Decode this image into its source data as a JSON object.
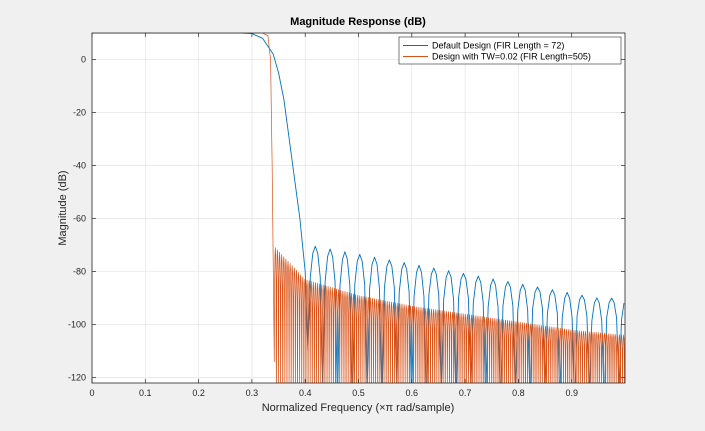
{
  "chart_data": {
    "type": "line",
    "title": "Magnitude Response (dB)",
    "xlabel": "Normalized  Frequency  (×π rad/sample)",
    "ylabel": "Magnitude (dB)",
    "xlim": [
      0,
      1
    ],
    "ylim": [
      -122,
      10
    ],
    "xticks": [
      0,
      0.1,
      0.2,
      0.3,
      0.4,
      0.5,
      0.6,
      0.7,
      0.8,
      0.9
    ],
    "xtick_labels": [
      "0",
      "0.1",
      "0.2",
      "0.3",
      "0.4",
      "0.5",
      "0.6",
      "0.7",
      "0.8",
      "0.9"
    ],
    "yticks": [
      -120,
      -100,
      -80,
      -60,
      -40,
      -20,
      0
    ],
    "ytick_labels": [
      "-120",
      "-100",
      "-80",
      "-60",
      "-40",
      "-20",
      "0"
    ],
    "grid": true,
    "legend_position": "top-right",
    "series": [
      {
        "name": "Default Design (FIR Length = 72)",
        "color": "#0072bd",
        "passband_gain_db": 10,
        "x": [
          0,
          0.28,
          0.3,
          0.32,
          0.34,
          0.35,
          0.36,
          0.37,
          0.38,
          0.39,
          0.4,
          0.405
        ],
        "y": [
          10,
          10,
          9.8,
          8,
          2,
          -5,
          -15,
          -30,
          -45,
          -60,
          -80,
          -110
        ],
        "sidelobe_peaks_x": [
          0.407,
          0.95
        ],
        "sidelobe_peaks_y": [
          -70,
          -90
        ],
        "sidelobe_lobe_width": 0.0278
      },
      {
        "name": "Design with TW=0.02 (FIR Length=505)",
        "color": "#d95319",
        "passband_gain_db": 10,
        "x": [
          0,
          0.32,
          0.33,
          0.335,
          0.338,
          0.342
        ],
        "y": [
          10,
          10,
          9,
          0,
          -40,
          -114
        ],
        "sidelobe_peaks_x": [
          0.344,
          0.4,
          0.5,
          0.6,
          0.7,
          0.8,
          0.9,
          1.0
        ],
        "sidelobe_peaks_y": [
          -71,
          -83,
          -89,
          -93,
          -96,
          -99,
          -102,
          -104
        ],
        "sidelobe_lobe_width": 0.00396
      }
    ]
  }
}
